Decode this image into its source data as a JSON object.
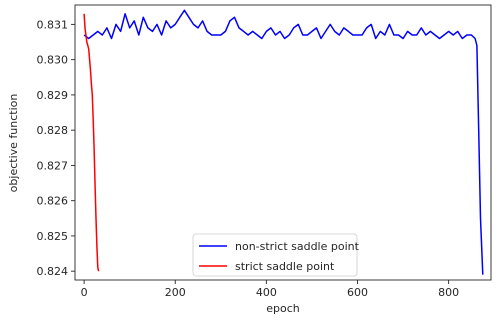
{
  "chart_data": {
    "type": "line",
    "title": "",
    "xlabel": "epoch",
    "ylabel": "objective function",
    "xlim": [
      -20,
      893
    ],
    "ylim": [
      0.82375,
      0.83155
    ],
    "xticks": [
      0,
      200,
      400,
      600,
      800
    ],
    "yticks": [
      0.824,
      0.825,
      0.826,
      0.827,
      0.828,
      0.829,
      0.83,
      0.831
    ],
    "ytick_labels": [
      "0.824",
      "0.825",
      "0.826",
      "0.827",
      "0.828",
      "0.829",
      "0.830",
      "0.831"
    ],
    "grid": false,
    "legend_position": "lower-center",
    "series": [
      {
        "name": "non-strict saddle point",
        "color": "#0000ff",
        "x": [
          0,
          10,
          20,
          30,
          40,
          50,
          60,
          70,
          80,
          90,
          100,
          110,
          120,
          130,
          140,
          150,
          160,
          170,
          180,
          190,
          200,
          210,
          220,
          230,
          240,
          250,
          260,
          270,
          280,
          290,
          300,
          310,
          320,
          330,
          340,
          350,
          360,
          370,
          380,
          390,
          400,
          410,
          420,
          430,
          440,
          450,
          460,
          470,
          480,
          490,
          500,
          510,
          520,
          530,
          540,
          550,
          560,
          570,
          580,
          590,
          600,
          610,
          620,
          630,
          640,
          650,
          660,
          670,
          680,
          690,
          700,
          710,
          720,
          730,
          740,
          750,
          760,
          770,
          780,
          790,
          800,
          810,
          820,
          830,
          840,
          850,
          858,
          862,
          866,
          870,
          875
        ],
        "values": [
          0.8307,
          0.8306,
          0.8307,
          0.8308,
          0.8307,
          0.8309,
          0.8306,
          0.831,
          0.8308,
          0.8313,
          0.8309,
          0.8311,
          0.8307,
          0.8312,
          0.8309,
          0.8308,
          0.831,
          0.8307,
          0.8311,
          0.8309,
          0.831,
          0.8312,
          0.8314,
          0.8312,
          0.831,
          0.8309,
          0.8311,
          0.8308,
          0.8307,
          0.8307,
          0.8307,
          0.8308,
          0.8311,
          0.8312,
          0.8309,
          0.8308,
          0.8307,
          0.8308,
          0.8307,
          0.8306,
          0.8308,
          0.8309,
          0.8307,
          0.8308,
          0.8306,
          0.8307,
          0.8309,
          0.831,
          0.8307,
          0.8307,
          0.8308,
          0.8309,
          0.8306,
          0.8308,
          0.831,
          0.8308,
          0.8307,
          0.8309,
          0.8308,
          0.8307,
          0.8307,
          0.8307,
          0.8309,
          0.831,
          0.8306,
          0.8308,
          0.8307,
          0.831,
          0.8307,
          0.8307,
          0.8306,
          0.8308,
          0.8307,
          0.8307,
          0.8309,
          0.8307,
          0.8308,
          0.8307,
          0.8306,
          0.8307,
          0.8308,
          0.8307,
          0.8308,
          0.8306,
          0.8307,
          0.8307,
          0.8306,
          0.8304,
          0.828,
          0.8255,
          0.8239
        ]
      },
      {
        "name": "strict saddle point",
        "color": "#ff0000",
        "x": [
          0,
          2,
          4,
          6,
          8,
          10,
          12,
          14,
          16,
          18,
          20,
          22,
          24,
          26,
          28,
          30,
          32
        ],
        "values": [
          0.8313,
          0.8309,
          0.8307,
          0.8305,
          0.8304,
          0.8303,
          0.83,
          0.8297,
          0.8293,
          0.829,
          0.8283,
          0.8275,
          0.8265,
          0.8255,
          0.8247,
          0.8241,
          0.824
        ]
      }
    ]
  }
}
